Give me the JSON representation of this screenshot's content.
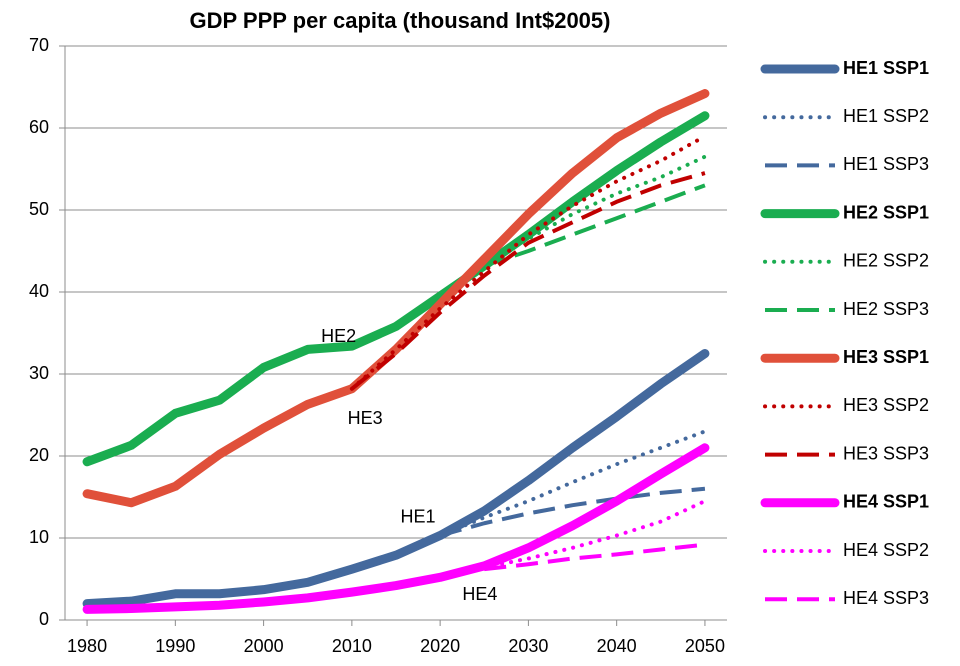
{
  "chart_data": {
    "type": "line",
    "title": "GDP PPP per capita (thousand Int$2005)",
    "x": [
      1980,
      1985,
      1990,
      1995,
      2000,
      2005,
      2010,
      2015,
      2020,
      2025,
      2030,
      2035,
      2040,
      2045,
      2050
    ],
    "xlim": [
      1977.5,
      2052.5
    ],
    "xticks": [
      1980,
      1990,
      2000,
      2010,
      2020,
      2030,
      2040,
      2050
    ],
    "ylim": [
      0,
      70
    ],
    "yticks": [
      0,
      10,
      20,
      30,
      40,
      50,
      60,
      70
    ],
    "grid": true,
    "legend": "right",
    "series": [
      {
        "name": "HE1 SSP1",
        "color": "#44699d",
        "style": "solid",
        "values": [
          2.0,
          2.3,
          3.2,
          3.2,
          3.7,
          4.6,
          6.2,
          7.9,
          10.3,
          13.3,
          17.0,
          21.0,
          24.8,
          28.8,
          32.5
        ]
      },
      {
        "name": "HE1 SSP2",
        "color": "#44699d",
        "style": "dotted",
        "values": [
          null,
          null,
          null,
          null,
          null,
          null,
          null,
          null,
          10.3,
          12.5,
          14.5,
          16.8,
          19.0,
          21.0,
          23.0
        ]
      },
      {
        "name": "HE1 SSP3",
        "color": "#44699d",
        "style": "dashed",
        "values": [
          null,
          null,
          null,
          null,
          null,
          null,
          null,
          null,
          10.3,
          11.8,
          13.0,
          14.0,
          14.8,
          15.5,
          16.0
        ]
      },
      {
        "name": "HE2 SSP1",
        "color": "#1aad50",
        "style": "solid",
        "values": [
          19.3,
          21.3,
          25.2,
          26.8,
          30.8,
          33.0,
          33.4,
          35.8,
          39.5,
          43.2,
          47.0,
          51.0,
          54.8,
          58.3,
          61.5
        ]
      },
      {
        "name": "HE2 SSP2",
        "color": "#1aad50",
        "style": "dotted",
        "values": [
          null,
          null,
          null,
          null,
          null,
          null,
          null,
          null,
          null,
          43.2,
          46.5,
          49.5,
          52.0,
          54.0,
          56.5
        ]
      },
      {
        "name": "HE2 SSP3",
        "color": "#1aad50",
        "style": "dashed",
        "values": [
          null,
          null,
          null,
          null,
          null,
          null,
          null,
          null,
          null,
          43.2,
          45.0,
          47.0,
          49.0,
          51.0,
          53.0
        ]
      },
      {
        "name": "HE3 SSP1",
        "color": "#e0503a",
        "style": "solid",
        "values": [
          15.4,
          14.3,
          16.3,
          20.2,
          23.4,
          26.3,
          28.2,
          33.0,
          38.5,
          44.0,
          49.5,
          54.5,
          58.8,
          61.8,
          64.2
        ]
      },
      {
        "name": "HE3 SSP2",
        "color": "#c00000",
        "style": "dotted",
        "values": [
          null,
          null,
          null,
          null,
          null,
          null,
          28.2,
          33.0,
          38.0,
          42.5,
          47.0,
          50.5,
          53.5,
          56.0,
          59.0
        ]
      },
      {
        "name": "HE3 SSP3",
        "color": "#c00000",
        "style": "dashed",
        "values": [
          null,
          null,
          null,
          null,
          null,
          null,
          28.2,
          32.5,
          37.5,
          42.0,
          46.0,
          48.5,
          51.0,
          53.0,
          54.5
        ]
      },
      {
        "name": "HE4 SSP1",
        "color": "#ff00ff",
        "style": "solid",
        "values": [
          1.3,
          1.4,
          1.6,
          1.8,
          2.2,
          2.7,
          3.4,
          4.2,
          5.2,
          6.6,
          8.8,
          11.5,
          14.5,
          17.8,
          21.0
        ]
      },
      {
        "name": "HE4 SSP2",
        "color": "#ff00ff",
        "style": "dotted",
        "values": [
          null,
          null,
          null,
          null,
          null,
          null,
          null,
          null,
          null,
          6.4,
          7.5,
          8.8,
          10.3,
          12.0,
          14.5
        ]
      },
      {
        "name": "HE4 SSP3",
        "color": "#ff00ff",
        "style": "dashed",
        "values": [
          null,
          null,
          null,
          null,
          null,
          null,
          null,
          null,
          null,
          6.2,
          6.8,
          7.5,
          8.0,
          8.6,
          9.2
        ]
      }
    ],
    "annotations": [
      "HE2",
      "HE3",
      "HE1",
      "HE4"
    ]
  }
}
